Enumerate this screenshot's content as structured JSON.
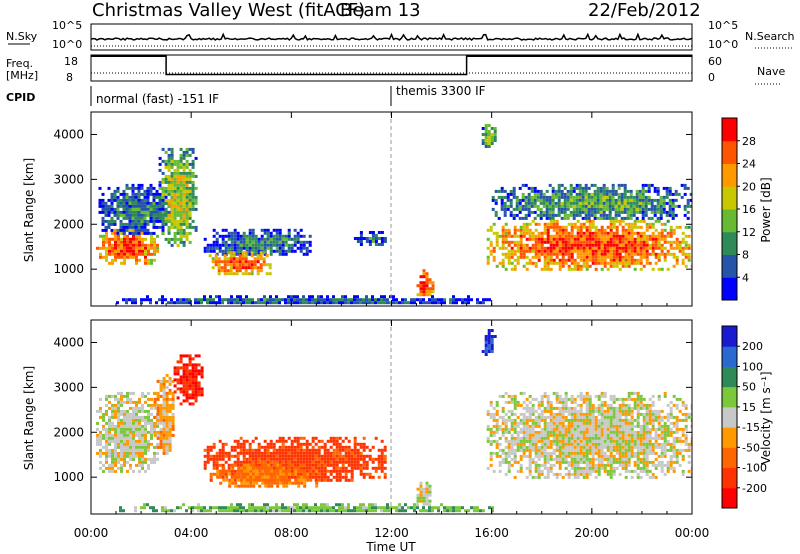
{
  "header": {
    "title": "Christmas Valley West (fitACF)",
    "beam": "Beam 13",
    "date": "22/Feb/2012"
  },
  "strips": {
    "nsky_label": "N.Sky",
    "nsky_ticks": [
      "10^5",
      "10^0"
    ],
    "nsearch_label": "N.Search",
    "nsearch_ticks": [
      "10^5",
      "10^0"
    ],
    "freq_label": "Freq.",
    "freq_unit": "[MHz]",
    "freq_ticks": [
      "18",
      "8"
    ],
    "nave_label": "Nave",
    "nave_ticks": [
      "60",
      "0"
    ],
    "cpid_label": "CPID",
    "cpid_segments": [
      {
        "text": "normal (fast) -151 IF",
        "start_hour": 0
      },
      {
        "text": "themis 3300 IF",
        "start_hour": 12
      }
    ],
    "freq_steps": [
      {
        "start_hour": 0,
        "end_hour": 3,
        "mhz": 17.5
      },
      {
        "start_hour": 3,
        "end_hour": 15,
        "mhz": 10.5
      },
      {
        "start_hour": 15,
        "end_hour": 24,
        "mhz": 17.5
      }
    ]
  },
  "chart_data": [
    {
      "type": "heatmap",
      "name": "power",
      "ylabel": "Slant Range [km]",
      "xlim": [
        0,
        24
      ],
      "ylim": [
        180,
        4500
      ],
      "yticks": [
        "1000",
        "2000",
        "3000",
        "4000"
      ],
      "colorbar": {
        "label": "Power [dB]",
        "ticks": [
          "4",
          "8",
          "12",
          "16",
          "20",
          "24",
          "28"
        ],
        "colors": [
          "#0000ff",
          "#2455a8",
          "#2e8b57",
          "#66bb33",
          "#c8c800",
          "#ff9900",
          "#ff5500",
          "#ff0000"
        ]
      },
      "regions": [
        {
          "x": [
            0.2,
            2.6
          ],
          "y": [
            1100,
            1900
          ],
          "level": 0.85
        },
        {
          "x": [
            0.3,
            3.2
          ],
          "y": [
            1800,
            2900
          ],
          "level": 0.3
        },
        {
          "x": [
            2.7,
            4.2
          ],
          "y": [
            1500,
            3700
          ],
          "level": 0.55
        },
        {
          "x": [
            4.5,
            8.8
          ],
          "y": [
            1300,
            1900
          ],
          "level": 0.3
        },
        {
          "x": [
            4.7,
            7.2
          ],
          "y": [
            900,
            1400
          ],
          "level": 0.8
        },
        {
          "x": [
            10.5,
            11.8
          ],
          "y": [
            1550,
            1850
          ],
          "level": 0.25
        },
        {
          "x": [
            13.0,
            13.6
          ],
          "y": [
            400,
            1000
          ],
          "level": 0.9
        },
        {
          "x": [
            15.6,
            16.1
          ],
          "y": [
            3700,
            4300
          ],
          "level": 0.5
        },
        {
          "x": [
            15.8,
            24.0
          ],
          "y": [
            1000,
            2100
          ],
          "level": 0.85
        },
        {
          "x": [
            16.0,
            24.0
          ],
          "y": [
            2100,
            2900
          ],
          "level": 0.4
        },
        {
          "x": [
            1.0,
            16.0
          ],
          "y": [
            220,
            420
          ],
          "level": 0.25
        }
      ]
    },
    {
      "type": "heatmap",
      "name": "velocity",
      "ylabel": "Slant Range [km]",
      "xlabel": "Time UT",
      "xlim": [
        0,
        24
      ],
      "ylim": [
        180,
        4500
      ],
      "xticks": [
        "00:00",
        "04:00",
        "08:00",
        "12:00",
        "16:00",
        "20:00",
        "00:00"
      ],
      "yticks": [
        "1000",
        "2000",
        "3000",
        "4000"
      ],
      "colorbar": {
        "label": "Velocity [m s⁻¹]",
        "ticks": [
          "200",
          "100",
          "50",
          "15",
          "-15",
          "-50",
          "-100",
          "-200"
        ],
        "colors": [
          "#1a1ad0",
          "#2a6ad0",
          "#2e8b57",
          "#7cc83c",
          "#c8c8c8",
          "#ff9900",
          "#ff6600",
          "#ff3300",
          "#ff0000"
        ]
      },
      "regions": [
        {
          "x": [
            0.2,
            2.6
          ],
          "y": [
            1100,
            2900
          ],
          "value": 0
        },
        {
          "x": [
            2.5,
            3.3
          ],
          "y": [
            1500,
            3300
          ],
          "value": -30
        },
        {
          "x": [
            3.3,
            4.4
          ],
          "y": [
            2600,
            3800
          ],
          "value": -200
        },
        {
          "x": [
            4.5,
            11.8
          ],
          "y": [
            900,
            1900
          ],
          "value": -120
        },
        {
          "x": [
            5.0,
            9.0
          ],
          "y": [
            800,
            1300
          ],
          "value": -60
        },
        {
          "x": [
            13.0,
            13.5
          ],
          "y": [
            400,
            900
          ],
          "value": 0
        },
        {
          "x": [
            15.6,
            16.1
          ],
          "y": [
            3700,
            4300
          ],
          "value": 200
        },
        {
          "x": [
            15.8,
            24.0
          ],
          "y": [
            1000,
            2900
          ],
          "value": 0
        },
        {
          "x": [
            1.0,
            16.0
          ],
          "y": [
            220,
            420
          ],
          "value": 40
        }
      ]
    }
  ]
}
